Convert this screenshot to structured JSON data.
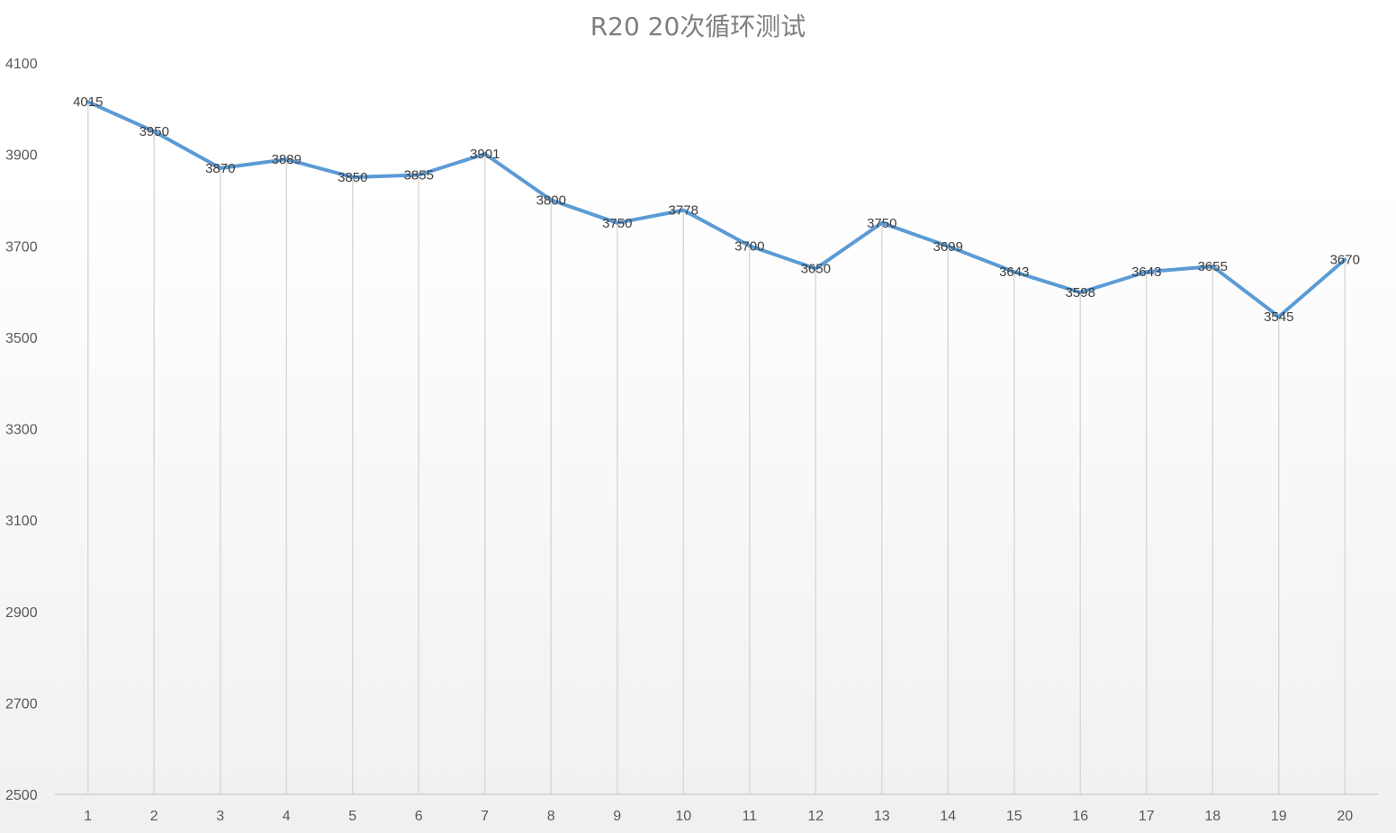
{
  "chart_data": {
    "type": "line",
    "title": "R20 20次循环测试",
    "xlabel": "",
    "ylabel": "",
    "categories": [
      "1",
      "2",
      "3",
      "4",
      "5",
      "6",
      "7",
      "8",
      "9",
      "10",
      "11",
      "12",
      "13",
      "14",
      "15",
      "16",
      "17",
      "18",
      "19",
      "20"
    ],
    "series": [
      {
        "values": [
          4015,
          3950,
          3870,
          3889,
          3850,
          3855,
          3901,
          3800,
          3750,
          3778,
          3700,
          3650,
          3750,
          3699,
          3643,
          3598,
          3643,
          3655,
          3545,
          3670
        ]
      }
    ],
    "ylim": [
      2500,
      4100
    ],
    "yticks": [
      2500,
      2700,
      2900,
      3100,
      3300,
      3500,
      3700,
      3900,
      4100
    ],
    "grid": "vertical drop lines",
    "legend": "none",
    "line_color": "#5b9bd5"
  }
}
